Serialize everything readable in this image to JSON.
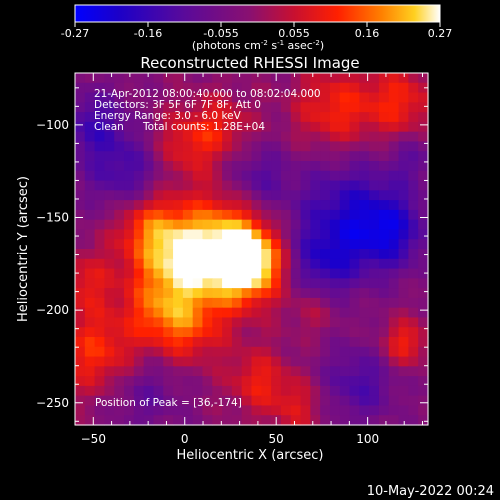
{
  "chart_data": {
    "type": "heatmap",
    "title": "Reconstructed RHESSI Image",
    "xlabel": "Heliocentric X (arcsec)",
    "ylabel": "Heliocentric Y (arcsec)",
    "xlim": [
      -60,
      133
    ],
    "ylim": [
      -262,
      -72
    ],
    "x_ticks": [
      -50,
      0,
      50,
      100
    ],
    "y_ticks": [
      -100,
      -150,
      -200,
      -250
    ],
    "colorbar": {
      "range": [
        -0.27,
        0.27
      ],
      "ticks": [
        "-0.27",
        "-0.16",
        "-0.055",
        "0.055",
        "0.16",
        "0.27"
      ],
      "label": "(photons cm",
      "label_exp1": "-2",
      "label_mid": " s",
      "label_exp2": "-1",
      "label_end": " asec",
      "label_exp3": "-2",
      "label_close": ")"
    },
    "annotations": {
      "time": "21-Apr-2012 08:00:40.000 to 08:02:04.000",
      "detectors": "Detectors: 3F 5F 6F 7F 8F, Att 0",
      "energy": "Energy Range: 3.0 - 6.0 keV",
      "clean": "Clean",
      "counts": "Total counts: 1.28E+04",
      "peak": "Position of Peak = [36,-174]"
    },
    "peak": [
      36,
      -174
    ],
    "sources": [
      {
        "x": 36,
        "y": -174,
        "amp": 0.3,
        "sigma": 13
      },
      {
        "x": 12,
        "y": -178,
        "amp": 0.19,
        "sigma": 20
      },
      {
        "x": -8,
        "y": -168,
        "amp": 0.15,
        "sigma": 16
      },
      {
        "x": -22,
        "y": -150,
        "amp": 0.13,
        "sigma": 14
      },
      {
        "x": 22,
        "y": -155,
        "amp": 0.1,
        "sigma": 14
      },
      {
        "x": -15,
        "y": -200,
        "amp": 0.12,
        "sigma": 13
      },
      {
        "x": 2,
        "y": -212,
        "amp": 0.1,
        "sigma": 13
      },
      {
        "x": -48,
        "y": -223,
        "amp": 0.14,
        "sigma": 16
      },
      {
        "x": -55,
        "y": -185,
        "amp": 0.1,
        "sigma": 12
      },
      {
        "x": 40,
        "y": -238,
        "amp": 0.11,
        "sigma": 12
      },
      {
        "x": 62,
        "y": -252,
        "amp": 0.09,
        "sigma": 11
      },
      {
        "x": 0,
        "y": -112,
        "amp": 0.11,
        "sigma": 14
      },
      {
        "x": 20,
        "y": -100,
        "amp": 0.09,
        "sigma": 12
      },
      {
        "x": 82,
        "y": -92,
        "amp": 0.13,
        "sigma": 16
      },
      {
        "x": 118,
        "y": -88,
        "amp": 0.12,
        "sigma": 14
      },
      {
        "x": 120,
        "y": -218,
        "amp": 0.13,
        "sigma": 9
      },
      {
        "x": 70,
        "y": -200,
        "amp": 0.06,
        "sigma": 10
      },
      {
        "x": -30,
        "y": -130,
        "amp": -0.14,
        "sigma": 16
      },
      {
        "x": -50,
        "y": -100,
        "amp": -0.12,
        "sigma": 14
      },
      {
        "x": 90,
        "y": -148,
        "amp": -0.15,
        "sigma": 22
      },
      {
        "x": 112,
        "y": -158,
        "amp": -0.14,
        "sigma": 14
      },
      {
        "x": 75,
        "y": -175,
        "amp": -0.12,
        "sigma": 14
      },
      {
        "x": 95,
        "y": -240,
        "amp": -0.11,
        "sigma": 15
      },
      {
        "x": -22,
        "y": -245,
        "amp": -0.08,
        "sigma": 14
      },
      {
        "x": 40,
        "y": -128,
        "amp": -0.09,
        "sigma": 12
      },
      {
        "x": 125,
        "y": -118,
        "amp": -0.07,
        "sigma": 9
      }
    ],
    "baseline": -0.02
  },
  "footer": {
    "date": "10-May-2022 00:24"
  }
}
